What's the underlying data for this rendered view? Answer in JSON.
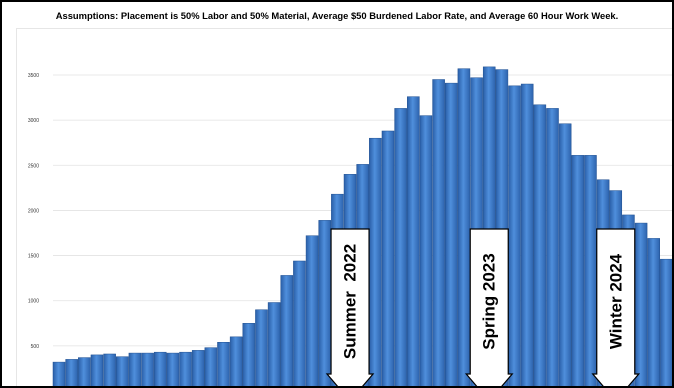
{
  "chart_data": {
    "type": "bar",
    "title": "Assumptions: Placement is 50% Labor and 50% Material, Average $50 Burdened Labor Rate, and Average 60 Hour Work Week.",
    "xlabel": "",
    "ylabel": "",
    "ylim": [
      0,
      3800
    ],
    "yticks": [
      500,
      1000,
      1500,
      2000,
      2500,
      3000,
      3500
    ],
    "grid": true,
    "bar_color": "#3b78c8",
    "values": [
      320,
      350,
      370,
      400,
      410,
      380,
      420,
      420,
      430,
      420,
      430,
      450,
      480,
      540,
      600,
      750,
      900,
      980,
      1280,
      1440,
      1720,
      1890,
      2180,
      2400,
      2510,
      2800,
      2880,
      3130,
      3260,
      3050,
      3450,
      3410,
      3570,
      3470,
      3590,
      3560,
      3380,
      3400,
      3170,
      3130,
      2960,
      2610,
      2610,
      2340,
      2220,
      1950,
      1860,
      1690,
      1460
    ],
    "annotations": [
      {
        "label": "Summer  2022",
        "bar_index": 23
      },
      {
        "label": "Spring 2023",
        "bar_index": 34
      },
      {
        "label": "Winter 2024",
        "bar_index": 44
      }
    ]
  }
}
